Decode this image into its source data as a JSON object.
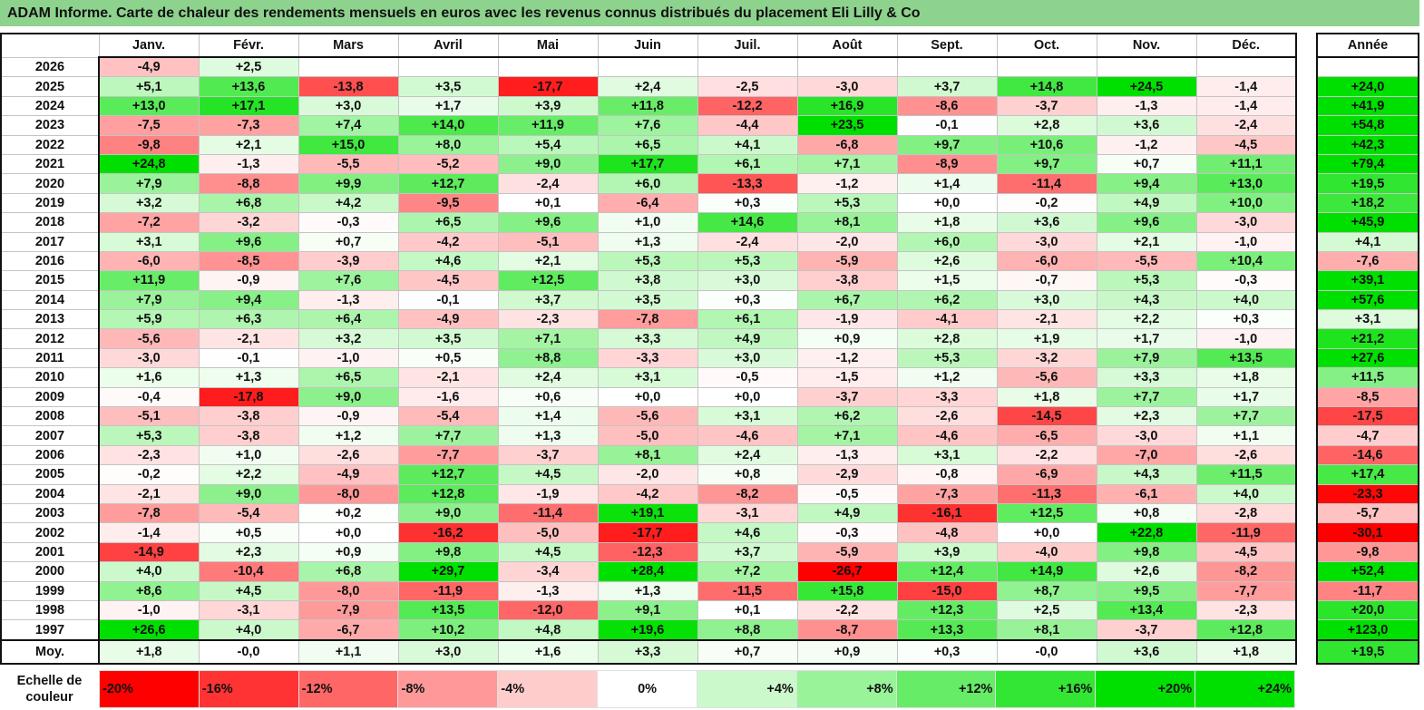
{
  "title": "ADAM Informe. Carte de chaleur des rendements mensuels en euros avec les revenus connus distribués du placement Eli Lilly & Co",
  "chart_data": {
    "type": "heatmap",
    "columns": [
      "Janv.",
      "Févr.",
      "Mars",
      "Avril",
      "Mai",
      "Juin",
      "Juil.",
      "Août",
      "Sept.",
      "Oct.",
      "Nov.",
      "Déc."
    ],
    "annual_header": "Année",
    "rows": [
      {
        "year": "2026",
        "values": [
          "-4,9",
          "+2,5",
          "",
          "",
          "",
          "",
          "",
          "",
          "",
          "",
          "",
          ""
        ],
        "annual": ""
      },
      {
        "year": "2025",
        "values": [
          "+5,1",
          "+13,6",
          "-13,8",
          "+3,5",
          "-17,7",
          "+2,4",
          "-2,5",
          "-3,0",
          "+3,7",
          "+14,8",
          "+24,5",
          "-1,4"
        ],
        "annual": "+24,0"
      },
      {
        "year": "2024",
        "values": [
          "+13,0",
          "+17,1",
          "+3,0",
          "+1,7",
          "+3,9",
          "+11,8",
          "-12,2",
          "+16,9",
          "-8,6",
          "-3,7",
          "-1,3",
          "-1,4"
        ],
        "annual": "+41,9"
      },
      {
        "year": "2023",
        "values": [
          "-7,5",
          "-7,3",
          "+7,4",
          "+14,0",
          "+11,9",
          "+7,6",
          "-4,4",
          "+23,5",
          "-0,1",
          "+2,8",
          "+3,6",
          "-2,4"
        ],
        "annual": "+54,8"
      },
      {
        "year": "2022",
        "values": [
          "-9,8",
          "+2,1",
          "+15,0",
          "+8,0",
          "+5,4",
          "+6,5",
          "+4,1",
          "-6,8",
          "+9,7",
          "+10,6",
          "-1,2",
          "-4,5"
        ],
        "annual": "+42,3"
      },
      {
        "year": "2021",
        "values": [
          "+24,8",
          "-1,3",
          "-5,5",
          "-5,2",
          "+9,0",
          "+17,7",
          "+6,1",
          "+7,1",
          "-8,9",
          "+9,7",
          "+0,7",
          "+11,1"
        ],
        "annual": "+79,4"
      },
      {
        "year": "2020",
        "values": [
          "+7,9",
          "-8,8",
          "+9,9",
          "+12,7",
          "-2,4",
          "+6,0",
          "-13,3",
          "-1,2",
          "+1,4",
          "-11,4",
          "+9,4",
          "+13,0"
        ],
        "annual": "+19,5"
      },
      {
        "year": "2019",
        "values": [
          "+3,2",
          "+6,8",
          "+4,2",
          "-9,5",
          "+0,1",
          "-6,4",
          "+0,3",
          "+5,3",
          "+0,0",
          "-0,2",
          "+4,9",
          "+10,0"
        ],
        "annual": "+18,2"
      },
      {
        "year": "2018",
        "values": [
          "-7,2",
          "-3,2",
          "-0,3",
          "+6,5",
          "+9,6",
          "+1,0",
          "+14,6",
          "+8,1",
          "+1,8",
          "+3,6",
          "+9,6",
          "-3,0"
        ],
        "annual": "+45,9"
      },
      {
        "year": "2017",
        "values": [
          "+3,1",
          "+9,6",
          "+0,7",
          "-4,2",
          "-5,1",
          "+1,3",
          "-2,4",
          "-2,0",
          "+6,0",
          "-3,0",
          "+2,1",
          "-1,0"
        ],
        "annual": "+4,1"
      },
      {
        "year": "2016",
        "values": [
          "-6,0",
          "-8,5",
          "-3,9",
          "+4,6",
          "+2,1",
          "+5,3",
          "+5,3",
          "-5,9",
          "+2,6",
          "-6,0",
          "-5,5",
          "+10,4"
        ],
        "annual": "-7,6"
      },
      {
        "year": "2015",
        "values": [
          "+11,9",
          "-0,9",
          "+7,6",
          "-4,5",
          "+12,5",
          "+3,8",
          "+3,0",
          "-3,8",
          "+1,5",
          "-0,7",
          "+5,3",
          "-0,3"
        ],
        "annual": "+39,1"
      },
      {
        "year": "2014",
        "values": [
          "+7,9",
          "+9,4",
          "-1,3",
          "-0,1",
          "+3,7",
          "+3,5",
          "+0,3",
          "+6,7",
          "+6,2",
          "+3,0",
          "+4,3",
          "+4,0"
        ],
        "annual": "+57,6"
      },
      {
        "year": "2013",
        "values": [
          "+5,9",
          "+6,3",
          "+6,4",
          "-4,9",
          "-2,3",
          "-7,8",
          "+6,1",
          "-1,9",
          "-4,1",
          "-2,1",
          "+2,2",
          "+0,3"
        ],
        "annual": "+3,1"
      },
      {
        "year": "2012",
        "values": [
          "-5,6",
          "-2,1",
          "+3,2",
          "+3,5",
          "+7,1",
          "+3,3",
          "+4,9",
          "+0,9",
          "+2,8",
          "+1,9",
          "+1,7",
          "-1,0"
        ],
        "annual": "+21,2"
      },
      {
        "year": "2011",
        "values": [
          "-3,0",
          "-0,1",
          "-1,0",
          "+0,5",
          "+8,8",
          "-3,3",
          "+3,0",
          "-1,2",
          "+5,3",
          "-3,2",
          "+7,9",
          "+13,5"
        ],
        "annual": "+27,6"
      },
      {
        "year": "2010",
        "values": [
          "+1,6",
          "+1,3",
          "+6,5",
          "-2,1",
          "+2,4",
          "+3,1",
          "-0,5",
          "-1,5",
          "+1,2",
          "-5,6",
          "+3,3",
          "+1,8"
        ],
        "annual": "+11,5"
      },
      {
        "year": "2009",
        "values": [
          "-0,4",
          "-17,8",
          "+9,0",
          "-1,6",
          "+0,6",
          "+0,0",
          "+0,0",
          "-3,7",
          "-3,3",
          "+1,8",
          "+7,7",
          "+1,7"
        ],
        "annual": "-8,5"
      },
      {
        "year": "2008",
        "values": [
          "-5,1",
          "-3,8",
          "-0,9",
          "-5,4",
          "+1,4",
          "-5,6",
          "+3,1",
          "+6,2",
          "-2,6",
          "-14,5",
          "+2,3",
          "+7,7"
        ],
        "annual": "-17,5"
      },
      {
        "year": "2007",
        "values": [
          "+5,3",
          "-3,8",
          "+1,2",
          "+7,7",
          "+1,3",
          "-5,0",
          "-4,6",
          "+7,1",
          "-4,6",
          "-6,5",
          "-3,0",
          "+1,1"
        ],
        "annual": "-4,7"
      },
      {
        "year": "2006",
        "values": [
          "-2,3",
          "+1,0",
          "-2,6",
          "-7,7",
          "-3,7",
          "+8,1",
          "+2,4",
          "-1,3",
          "+3,1",
          "-2,2",
          "-7,0",
          "-2,6"
        ],
        "annual": "-14,6"
      },
      {
        "year": "2005",
        "values": [
          "-0,2",
          "+2,2",
          "-4,9",
          "+12,7",
          "+4,5",
          "-2,0",
          "+0,8",
          "-2,9",
          "-0,8",
          "-6,9",
          "+4,3",
          "+11,5"
        ],
        "annual": "+17,4"
      },
      {
        "year": "2004",
        "values": [
          "-2,1",
          "+9,0",
          "-8,0",
          "+12,8",
          "-1,9",
          "-4,2",
          "-8,2",
          "-0,5",
          "-7,3",
          "-11,3",
          "-6,1",
          "+4,0"
        ],
        "annual": "-23,3"
      },
      {
        "year": "2003",
        "values": [
          "-7,8",
          "-5,4",
          "+0,2",
          "+9,0",
          "-11,4",
          "+19,1",
          "-3,1",
          "+4,9",
          "-16,1",
          "+12,5",
          "+0,8",
          "-2,8"
        ],
        "annual": "-5,7"
      },
      {
        "year": "2002",
        "values": [
          "-1,4",
          "+0,5",
          "+0,0",
          "-16,2",
          "-5,0",
          "-17,7",
          "+4,6",
          "-0,3",
          "-4,8",
          "+0,0",
          "+22,8",
          "-11,9"
        ],
        "annual": "-30,1"
      },
      {
        "year": "2001",
        "values": [
          "-14,9",
          "+2,3",
          "+0,9",
          "+9,8",
          "+4,5",
          "-12,3",
          "+3,7",
          "-5,9",
          "+3,9",
          "-4,0",
          "+9,8",
          "-4,5"
        ],
        "annual": "-9,8"
      },
      {
        "year": "2000",
        "values": [
          "+4,0",
          "-10,4",
          "+6,8",
          "+29,7",
          "-3,4",
          "+28,4",
          "+7,2",
          "-26,7",
          "+12,4",
          "+14,9",
          "+2,6",
          "-8,2"
        ],
        "annual": "+52,4"
      },
      {
        "year": "1999",
        "values": [
          "+8,6",
          "+4,5",
          "-8,0",
          "-11,9",
          "-1,3",
          "+1,3",
          "-11,5",
          "+15,8",
          "-15,0",
          "+8,7",
          "+9,5",
          "-7,7"
        ],
        "annual": "-11,7"
      },
      {
        "year": "1998",
        "values": [
          "-1,0",
          "-3,1",
          "-7,9",
          "+13,5",
          "-12,0",
          "+9,1",
          "+0,1",
          "-2,2",
          "+12,3",
          "+2,5",
          "+13,4",
          "-2,3"
        ],
        "annual": "+20,0"
      },
      {
        "year": "1997",
        "values": [
          "+26,6",
          "+4,0",
          "-6,7",
          "+10,2",
          "+4,8",
          "+19,6",
          "+8,8",
          "-8,7",
          "+13,3",
          "+8,1",
          "-3,7",
          "+12,8"
        ],
        "annual": "+123,0"
      }
    ],
    "average_row": {
      "label": "Moy.",
      "values": [
        "+1,8",
        "-0,0",
        "+1,1",
        "+3,0",
        "+1,6",
        "+3,3",
        "+0,7",
        "+0,9",
        "+0,3",
        "-0,0",
        "+3,6",
        "+1,8"
      ],
      "annual": "+19,5"
    },
    "color_scale": {
      "label_line1": "Echelle de",
      "label_line2": "couleur",
      "stops": [
        {
          "label": "-20%",
          "value": -20
        },
        {
          "label": "-16%",
          "value": -16
        },
        {
          "label": "-12%",
          "value": -12
        },
        {
          "label": "-8%",
          "value": -8
        },
        {
          "label": "-4%",
          "value": -4
        },
        {
          "label": "0%",
          "value": 0
        },
        {
          "label": "+4%",
          "value": 4
        },
        {
          "label": "+8%",
          "value": 8
        },
        {
          "label": "+12%",
          "value": 12
        },
        {
          "label": "+16%",
          "value": 16
        },
        {
          "label": "+20%",
          "value": 20
        },
        {
          "label": "+24%",
          "value": 24
        }
      ]
    },
    "colors": {
      "negative_max": "#ff0000",
      "neutral": "#ffffff",
      "positive_max": "#00e000"
    }
  }
}
